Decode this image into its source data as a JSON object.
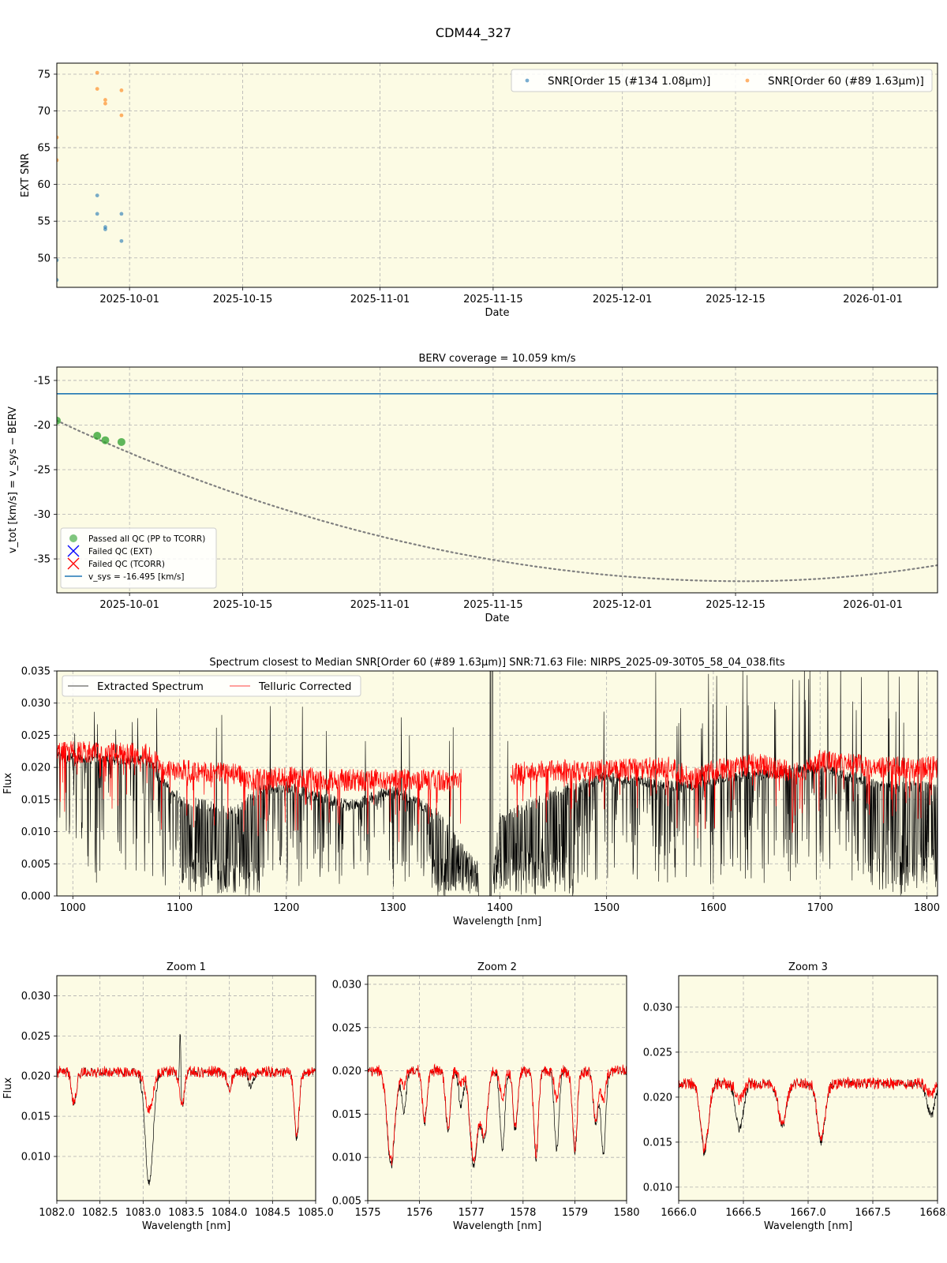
{
  "figure": {
    "title": "CDM44_327"
  },
  "colors": {
    "panel_bg": "#fcfbe4",
    "series_blue": "#1f77b4",
    "series_orange": "#ff7f0e",
    "pass_green": "#2ca02c",
    "fail_blue": "#0000ff",
    "fail_red": "#ff0000",
    "vsys_line": "#1f77b4",
    "extracted": "#000000",
    "telluric": "#ff0000",
    "berv_curve": "#808080"
  },
  "chart_data": [
    {
      "id": "snr",
      "type": "scatter",
      "title": "",
      "xlabel": "Date",
      "ylabel": "EXT SNR",
      "x_is_date": true,
      "xlim": [
        "2025-09-22",
        "2026-01-09"
      ],
      "ylim": [
        46.0,
        76.5
      ],
      "xticks": [
        "2025-10-01",
        "2025-10-15",
        "2025-11-01",
        "2025-11-15",
        "2025-12-01",
        "2025-12-15",
        "2026-01-01"
      ],
      "yticks": [
        50,
        55,
        60,
        65,
        70,
        75
      ],
      "grid": true,
      "legend_position": "top-right",
      "series": [
        {
          "name": "SNR[Order 15 (#134 1.08μm)]",
          "color": "#1f77b4",
          "points": [
            [
              "2025-09-22",
              49.7
            ],
            [
              "2025-09-22",
              47.0
            ],
            [
              "2025-09-27",
              58.5
            ],
            [
              "2025-09-27",
              56.0
            ],
            [
              "2025-09-28",
              54.2
            ],
            [
              "2025-09-28",
              53.9
            ],
            [
              "2025-09-30",
              56.0
            ],
            [
              "2025-09-30",
              52.3
            ]
          ]
        },
        {
          "name": "SNR[Order 60 (#89 1.63μm)]",
          "color": "#ff7f0e",
          "points": [
            [
              "2025-09-22",
              66.4
            ],
            [
              "2025-09-22",
              63.3
            ],
            [
              "2025-09-27",
              75.2
            ],
            [
              "2025-09-27",
              73.0
            ],
            [
              "2025-09-28",
              71.5
            ],
            [
              "2025-09-28",
              71.0
            ],
            [
              "2025-09-30",
              72.8
            ],
            [
              "2025-09-30",
              69.4
            ]
          ]
        }
      ]
    },
    {
      "id": "berv",
      "type": "line",
      "title": "BERV coverage = 10.059 km/s",
      "xlabel": "Date",
      "ylabel": "v_tot [km/s] = v_sys − BERV",
      "x_is_date": true,
      "xlim": [
        "2025-09-22",
        "2026-01-09"
      ],
      "ylim": [
        -38.8,
        -13.5
      ],
      "xticks": [
        "2025-10-01",
        "2025-10-15",
        "2025-11-01",
        "2025-11-15",
        "2025-12-01",
        "2025-12-15",
        "2026-01-01"
      ],
      "yticks": [
        -35,
        -30,
        -25,
        -20,
        -15
      ],
      "grid": true,
      "legend_position": "bottom-left",
      "vsys": -16.495,
      "curve": {
        "name": "BERV track",
        "min_value": -37.5,
        "min_date": "2025-12-16",
        "start_value": -19.5,
        "end_value": -35.7
      },
      "passed": [
        [
          "2025-09-22",
          -19.5
        ],
        [
          "2025-09-27",
          -21.2
        ],
        [
          "2025-09-28",
          -21.7
        ],
        [
          "2025-09-30",
          -21.9
        ]
      ],
      "legend": [
        {
          "label": "Passed all QC (PP to TCORR)",
          "kind": "dot",
          "color": "#2ca02c"
        },
        {
          "label": "Failed QC (EXT)",
          "kind": "x",
          "color": "#0000ff"
        },
        {
          "label": "Failed QC (TCORR)",
          "kind": "x",
          "color": "#ff0000"
        },
        {
          "label": "v_sys = -16.495 [km/s]",
          "kind": "line",
          "color": "#1f77b4"
        }
      ]
    },
    {
      "id": "spectrum",
      "type": "line",
      "title": "Spectrum closest to Median SNR[Order 60 (#89 1.63μm)]     SNR:71.63     File: NIRPS_2025-09-30T05_58_04_038.fits",
      "xlabel": "Wavelength [nm]",
      "ylabel": "Flux",
      "xlim": [
        985,
        1810
      ],
      "ylim": [
        0.0,
        0.035
      ],
      "xticks": [
        1000,
        1100,
        1200,
        1300,
        1400,
        1500,
        1600,
        1700,
        1800
      ],
      "yticks": [
        0.0,
        0.005,
        0.01,
        0.015,
        0.02,
        0.025,
        0.03,
        0.035
      ],
      "grid": true,
      "legend_position": "top-left",
      "series": [
        {
          "name": "Extracted Spectrum",
          "color": "#000000",
          "continuum": [
            [
              985,
              0.0215
            ],
            [
              1070,
              0.021
            ],
            [
              1100,
              0.015
            ],
            [
              1150,
              0.013
            ],
            [
              1175,
              0.0165
            ],
            [
              1200,
              0.017
            ],
            [
              1260,
              0.014
            ],
            [
              1300,
              0.0165
            ],
            [
              1340,
              0.013
            ],
            [
              1375,
              0.005
            ],
            [
              1380,
              0.0
            ],
            [
              1390,
              0.0
            ],
            [
              1400,
              0.012
            ],
            [
              1450,
              0.016
            ],
            [
              1500,
              0.0185
            ],
            [
              1570,
              0.017
            ],
            [
              1600,
              0.018
            ],
            [
              1700,
              0.02
            ],
            [
              1760,
              0.017
            ],
            [
              1810,
              0.017
            ]
          ]
        },
        {
          "name": "Telluric Corrected",
          "color": "#ff0000",
          "continuum": [
            [
              985,
              0.0225
            ],
            [
              1070,
              0.022
            ],
            [
              1080,
              0.0205
            ],
            [
              1100,
              0.0195
            ],
            [
              1150,
              0.019
            ],
            [
              1170,
              0.018
            ],
            [
              1200,
              0.0185
            ],
            [
              1250,
              0.018
            ],
            [
              1300,
              0.018
            ],
            [
              1360,
              0.018
            ],
            [
              1410,
              0.019
            ],
            [
              1450,
              0.0195
            ],
            [
              1500,
              0.0195
            ],
            [
              1560,
              0.02
            ],
            [
              1580,
              0.018
            ],
            [
              1600,
              0.0195
            ],
            [
              1640,
              0.0205
            ],
            [
              1680,
              0.019
            ],
            [
              1700,
              0.021
            ],
            [
              1760,
              0.02
            ],
            [
              1810,
              0.02
            ]
          ],
          "gaps": [
            [
              1364,
              1410
            ]
          ]
        }
      ]
    },
    {
      "id": "zoom1",
      "type": "line",
      "title": "Zoom 1",
      "xlabel": "Wavelength [nm]",
      "ylabel": "Flux",
      "xlim": [
        1082.0,
        1085.0
      ],
      "ylim": [
        0.0045,
        0.0325
      ],
      "xticks": [
        1082.0,
        1082.5,
        1083.0,
        1083.5,
        1084.0,
        1084.5,
        1085.0
      ],
      "yticks": [
        0.01,
        0.015,
        0.02,
        0.025,
        0.03
      ],
      "grid": true,
      "continuum": 0.0205,
      "lines": [
        [
          1082.2,
          0.0165,
          0.03
        ],
        [
          1083.07,
          0.0065,
          0.05
        ],
        [
          1083.45,
          0.016,
          0.03
        ],
        [
          1084.0,
          0.0185,
          0.03
        ],
        [
          1084.25,
          0.0185,
          0.03
        ],
        [
          1084.78,
          0.0122,
          0.03
        ]
      ],
      "emission": [
        [
          1083.43,
          0.029
        ]
      ]
    },
    {
      "id": "zoom2",
      "type": "line",
      "title": "Zoom 2",
      "xlabel": "Wavelength [nm]",
      "ylabel": "",
      "xlim": [
        1575.0,
        1580.0
      ],
      "ylim": [
        0.005,
        0.031
      ],
      "xticks": [
        1575,
        1576,
        1577,
        1578,
        1579,
        1580
      ],
      "yticks": [
        0.005,
        0.01,
        0.015,
        0.02,
        0.025,
        0.03
      ],
      "grid": true,
      "continuum": 0.02,
      "lines": [
        [
          1575.45,
          0.009,
          0.05
        ],
        [
          1575.7,
          0.0155,
          0.03
        ],
        [
          1576.1,
          0.014,
          0.03
        ],
        [
          1576.55,
          0.013,
          0.03
        ],
        [
          1576.8,
          0.016,
          0.03
        ],
        [
          1577.05,
          0.009,
          0.05
        ],
        [
          1577.25,
          0.012,
          0.04
        ],
        [
          1577.6,
          0.011,
          0.03
        ],
        [
          1577.85,
          0.013,
          0.03
        ],
        [
          1578.25,
          0.01,
          0.03
        ],
        [
          1578.65,
          0.011,
          0.03
        ],
        [
          1579.0,
          0.0105,
          0.03
        ],
        [
          1579.4,
          0.014,
          0.03
        ],
        [
          1579.55,
          0.0105,
          0.03
        ]
      ]
    },
    {
      "id": "zoom3",
      "type": "line",
      "title": "Zoom 3",
      "xlabel": "Wavelength [nm]",
      "ylabel": "",
      "xlim": [
        1666.0,
        1668.0
      ],
      "ylim": [
        0.0085,
        0.0335
      ],
      "xticks": [
        1666.0,
        1666.5,
        1667.0,
        1667.5,
        1668.0
      ],
      "yticks": [
        0.01,
        0.015,
        0.02,
        0.025,
        0.03
      ],
      "grid": true,
      "continuum": 0.0215,
      "lines": [
        [
          1666.2,
          0.0138,
          0.05
        ],
        [
          1666.47,
          0.0165,
          0.05
        ],
        [
          1666.8,
          0.0168,
          0.05
        ],
        [
          1667.1,
          0.015,
          0.05
        ],
        [
          1667.95,
          0.018,
          0.05
        ]
      ]
    }
  ]
}
